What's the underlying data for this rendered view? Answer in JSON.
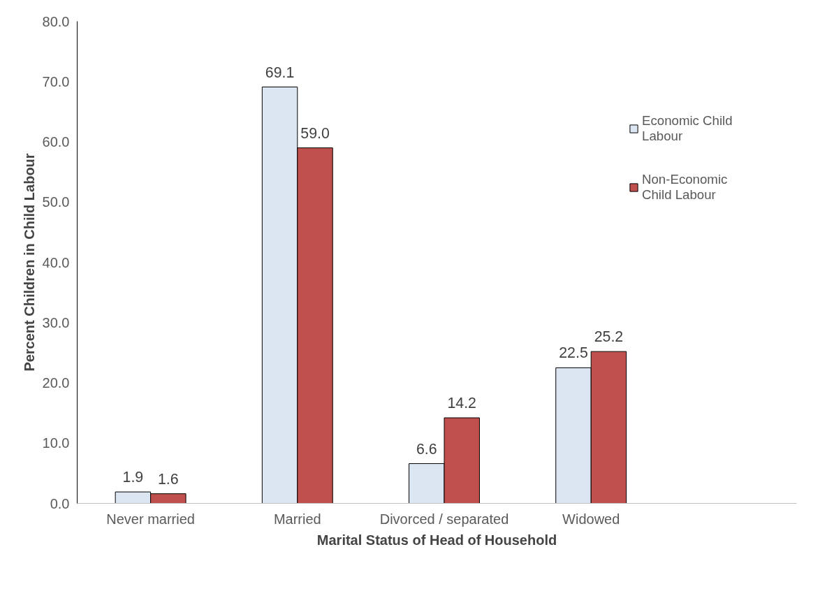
{
  "chart_data": {
    "type": "bar",
    "xlabel": "Marital Status of Head of Household",
    "ylabel": "Percent Children in Child Labour",
    "categories": [
      "Never married",
      "Married",
      "Divorced / separated",
      "Widowed"
    ],
    "series": [
      {
        "name": "Economic Child Labour",
        "color": "#dce6f2",
        "values": [
          1.9,
          69.1,
          6.6,
          22.5
        ],
        "value_labels": [
          "1.9",
          "69.1",
          "6.6",
          "22.5"
        ]
      },
      {
        "name": "Non-Economic Child Labour",
        "color": "#c0504d",
        "values": [
          1.6,
          59.0,
          14.2,
          25.2
        ],
        "value_labels": [
          "1.6",
          "59.0",
          "14.2",
          "25.2"
        ]
      }
    ],
    "ylim": [
      0,
      80
    ],
    "yticks": [
      {
        "value": 0,
        "label": "0.0"
      },
      {
        "value": 10,
        "label": "10.0"
      },
      {
        "value": 20,
        "label": "20.0"
      },
      {
        "value": 30,
        "label": "30.0"
      },
      {
        "value": 40,
        "label": "40.0"
      },
      {
        "value": 50,
        "label": "50.0"
      },
      {
        "value": 60,
        "label": "60.0"
      },
      {
        "value": 70,
        "label": "70.0"
      },
      {
        "value": 80,
        "label": "80.0"
      }
    ],
    "grid": false,
    "legend": "right"
  }
}
